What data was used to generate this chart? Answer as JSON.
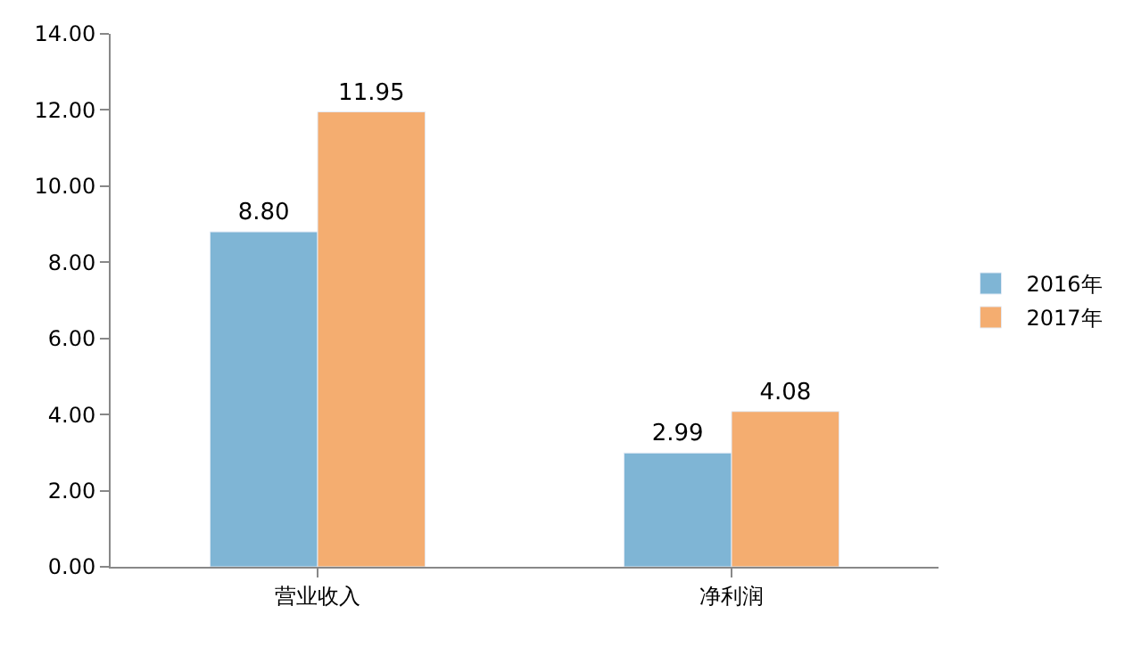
{
  "chart_data": {
    "type": "bar",
    "categories": [
      "营业收入",
      "净利润"
    ],
    "series": [
      {
        "name": "2016年",
        "color": "#7fb5d5",
        "values": [
          8.8,
          2.99
        ],
        "value_labels": [
          "8.80",
          "2.99"
        ]
      },
      {
        "name": "2017年",
        "color": "#f4ad70",
        "values": [
          11.95,
          4.08
        ],
        "value_labels": [
          "11.95",
          "4.08"
        ]
      }
    ],
    "ylim": [
      0,
      14
    ],
    "yticks": [
      {
        "value": 0,
        "label": "0.00"
      },
      {
        "value": 2,
        "label": "2.00"
      },
      {
        "value": 4,
        "label": "4.00"
      },
      {
        "value": 6,
        "label": "6.00"
      },
      {
        "value": 8,
        "label": "8.00"
      },
      {
        "value": 10,
        "label": "10.00"
      },
      {
        "value": 12,
        "label": "12.00"
      },
      {
        "value": 14,
        "label": "14.00"
      }
    ],
    "legend": "right"
  }
}
